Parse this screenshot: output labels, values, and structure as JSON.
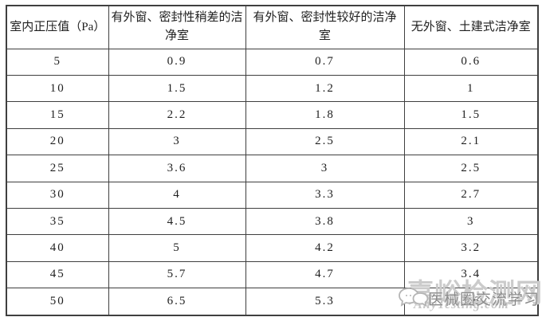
{
  "table": {
    "headers": [
      "室内正压值（Pa）",
      "有外窗、密封性稍差的洁净室",
      "有外窗、密封性较好的洁净室",
      "无外窗、土建式洁净室"
    ],
    "rows": [
      [
        "5",
        "0.9",
        "0.7",
        "0.6"
      ],
      [
        "10",
        "1.5",
        "1.2",
        "1"
      ],
      [
        "15",
        "2.2",
        "1.8",
        "1.5"
      ],
      [
        "20",
        "3",
        "2.5",
        "2.1"
      ],
      [
        "25",
        "3.6",
        "3",
        "2.5"
      ],
      [
        "30",
        "4",
        "3.3",
        "2.7"
      ],
      [
        "35",
        "4.5",
        "3.8",
        "3"
      ],
      [
        "40",
        "5",
        "4.2",
        "3.2"
      ],
      [
        "45",
        "5.7",
        "4.7",
        "3.4"
      ],
      [
        "50",
        "6.5",
        "5.3",
        "3.6"
      ]
    ]
  },
  "watermark": {
    "site_name": "嘉峪检测网",
    "site_url": "AnyTesting.com",
    "overlay_text": "医械圈交流学习",
    "icon": "chat-bubbles-icon",
    "colors": {
      "site_name": "#cbcbcb",
      "site_url": "#c6c6c6",
      "overlay_text": "#8a8a8a"
    }
  }
}
